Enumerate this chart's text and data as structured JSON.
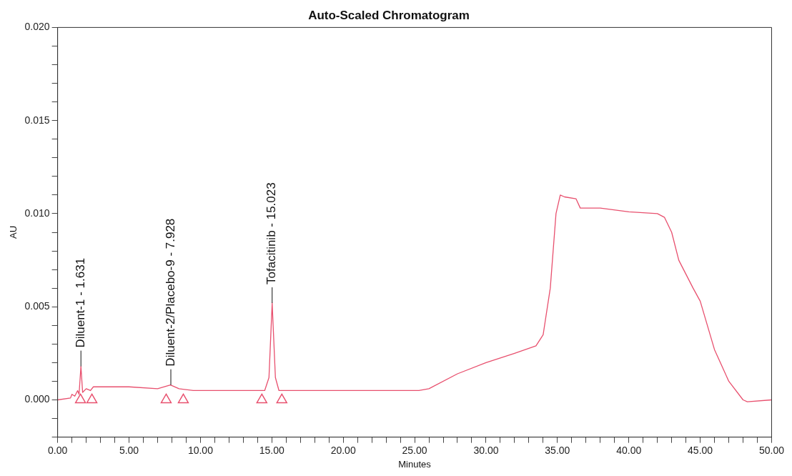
{
  "chart_data": {
    "type": "line",
    "title": "Auto-Scaled Chromatogram",
    "xlabel": "Minutes",
    "ylabel": "AU",
    "xlim": [
      0,
      50
    ],
    "xticks": [
      {
        "value": 0,
        "label": "0.00"
      },
      {
        "value": 1,
        "label": null
      },
      {
        "value": 2,
        "label": null
      },
      {
        "value": 3,
        "label": null
      },
      {
        "value": 4,
        "label": null
      },
      {
        "value": 5,
        "label": "5.00"
      },
      {
        "value": 6,
        "label": null
      },
      {
        "value": 7,
        "label": null
      },
      {
        "value": 8,
        "label": null
      },
      {
        "value": 9,
        "label": null
      },
      {
        "value": 10,
        "label": "10.00"
      },
      {
        "value": 11,
        "label": null
      },
      {
        "value": 12,
        "label": null
      },
      {
        "value": 13,
        "label": null
      },
      {
        "value": 14,
        "label": null
      },
      {
        "value": 15,
        "label": "15.00"
      },
      {
        "value": 16,
        "label": null
      },
      {
        "value": 17,
        "label": null
      },
      {
        "value": 18,
        "label": null
      },
      {
        "value": 19,
        "label": null
      },
      {
        "value": 20,
        "label": "20.00"
      },
      {
        "value": 21,
        "label": null
      },
      {
        "value": 22,
        "label": null
      },
      {
        "value": 23,
        "label": null
      },
      {
        "value": 24,
        "label": null
      },
      {
        "value": 25,
        "label": "25.00"
      },
      {
        "value": 26,
        "label": null
      },
      {
        "value": 27,
        "label": null
      },
      {
        "value": 28,
        "label": null
      },
      {
        "value": 29,
        "label": null
      },
      {
        "value": 30,
        "label": "30.00"
      },
      {
        "value": 31,
        "label": null
      },
      {
        "value": 32,
        "label": null
      },
      {
        "value": 33,
        "label": null
      },
      {
        "value": 34,
        "label": null
      },
      {
        "value": 35,
        "label": "35.00"
      },
      {
        "value": 36,
        "label": null
      },
      {
        "value": 37,
        "label": null
      },
      {
        "value": 38,
        "label": null
      },
      {
        "value": 39,
        "label": null
      },
      {
        "value": 40,
        "label": "40.00"
      },
      {
        "value": 41,
        "label": null
      },
      {
        "value": 42,
        "label": null
      },
      {
        "value": 43,
        "label": null
      },
      {
        "value": 44,
        "label": null
      },
      {
        "value": 45,
        "label": "45.00"
      },
      {
        "value": 46,
        "label": null
      },
      {
        "value": 47,
        "label": null
      },
      {
        "value": 48,
        "label": null
      },
      {
        "value": 49,
        "label": null
      },
      {
        "value": 50,
        "label": "50.00"
      }
    ],
    "ylim": [
      -0.002,
      0.02
    ],
    "yticks": [
      {
        "value": -0.002,
        "label": null
      },
      {
        "value": -0.001,
        "label": null
      },
      {
        "value": 0,
        "label": "0.000"
      },
      {
        "value": 0.001,
        "label": null
      },
      {
        "value": 0.002,
        "label": null
      },
      {
        "value": 0.003,
        "label": null
      },
      {
        "value": 0.004,
        "label": null
      },
      {
        "value": 0.005,
        "label": "0.005"
      },
      {
        "value": 0.006,
        "label": null
      },
      {
        "value": 0.007,
        "label": null
      },
      {
        "value": 0.008,
        "label": null
      },
      {
        "value": 0.009,
        "label": null
      },
      {
        "value": 0.01,
        "label": "0.010"
      },
      {
        "value": 0.011,
        "label": null
      },
      {
        "value": 0.012,
        "label": null
      },
      {
        "value": 0.013,
        "label": null
      },
      {
        "value": 0.014,
        "label": null
      },
      {
        "value": 0.015,
        "label": "0.015"
      },
      {
        "value": 0.016,
        "label": null
      },
      {
        "value": 0.017,
        "label": null
      },
      {
        "value": 0.018,
        "label": null
      },
      {
        "value": 0.019,
        "label": null
      },
      {
        "value": 0.02,
        "label": "0.020"
      }
    ],
    "series": [
      {
        "type": "line",
        "color": "#e8506e",
        "marker": "none",
        "x": [
          0,
          0.9,
          1.0,
          1.2,
          1.4,
          1.5,
          1.631,
          1.75,
          2.0,
          2.3,
          2.5,
          3.0,
          5.0,
          7.0,
          7.9,
          8.5,
          9.5,
          14.5,
          14.8,
          15.023,
          15.25,
          15.5,
          25.0,
          25.3,
          26.0,
          28.0,
          30.0,
          32.0,
          33.5,
          34.0,
          34.5,
          34.9,
          35.2,
          35.5,
          36.3,
          36.6,
          38.0,
          40.0,
          42.0,
          42.5,
          43.0,
          43.5,
          44.5,
          45.0,
          46.0,
          47.0,
          48.0,
          48.3,
          50.0
        ],
        "values": [
          0,
          0.0001,
          0.0003,
          0.0002,
          0.0005,
          0.0003,
          0.0018,
          0.0004,
          0.0006,
          0.0005,
          0.0007,
          0.0007,
          0.0007,
          0.0006,
          0.0008,
          0.0006,
          0.0005,
          0.0005,
          0.0012,
          0.0052,
          0.0012,
          0.0005,
          0.0005,
          0.0005,
          0.0006,
          0.0014,
          0.002,
          0.0025,
          0.0029,
          0.0035,
          0.006,
          0.01,
          0.011,
          0.0109,
          0.0108,
          0.0103,
          0.0103,
          0.0101,
          0.01,
          0.0098,
          0.009,
          0.0075,
          0.006,
          0.0053,
          0.0027,
          0.001,
          0,
          -0.0001,
          0
        ]
      },
      {
        "type": "scatter",
        "color": "#e8506e",
        "marker": "triangle",
        "x": [
          1.6,
          2.4,
          7.6,
          8.8,
          14.3,
          15.7
        ],
        "values": [
          0,
          0,
          0,
          0,
          0,
          0
        ]
      }
    ],
    "annotations": [
      {
        "text": "Diluent-1 - 1.631",
        "x": 1.631,
        "y": 0.0018
      },
      {
        "text": "Diluent-2/Placebo-9 - 7.928",
        "x": 7.928,
        "y": 0.0008
      },
      {
        "text": "Tofacitinib - 15.023",
        "x": 15.023,
        "y": 0.0052
      }
    ]
  }
}
